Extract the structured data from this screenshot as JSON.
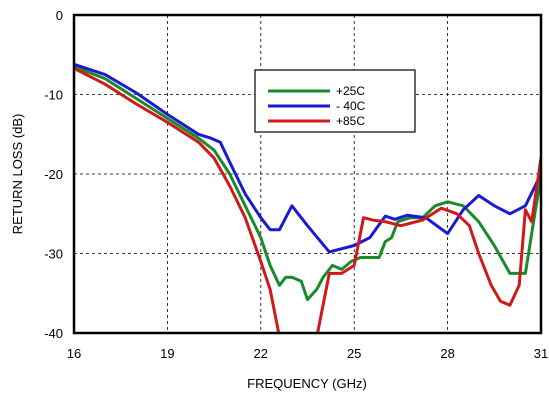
{
  "chart_data": {
    "type": "line",
    "title": "",
    "xlabel": "FREQUENCY (GHz)",
    "ylabel": "RETURN LOSS (dB)",
    "xlim": [
      16,
      31
    ],
    "ylim": [
      -40,
      0
    ],
    "xticks": [
      16,
      19,
      22,
      25,
      28,
      31
    ],
    "yticks": [
      0,
      -10,
      -20,
      -30,
      -40
    ],
    "grid": true,
    "grid_style": "dashed",
    "legend_position": "top-right-center",
    "series": [
      {
        "name": "+25C",
        "color": "#1a8a2a",
        "points": [
          [
            16,
            -6.5
          ],
          [
            17,
            -8.0
          ],
          [
            18,
            -10.5
          ],
          [
            19,
            -13.0
          ],
          [
            20,
            -15.5
          ],
          [
            20.5,
            -17.0
          ],
          [
            21,
            -20.0
          ],
          [
            21.5,
            -24.0
          ],
          [
            22,
            -28.0
          ],
          [
            22.3,
            -31.5
          ],
          [
            22.6,
            -34.0
          ],
          [
            22.8,
            -33.0
          ],
          [
            23.0,
            -33.0
          ],
          [
            23.3,
            -33.5
          ],
          [
            23.5,
            -35.8
          ],
          [
            23.8,
            -34.5
          ],
          [
            24.0,
            -33.0
          ],
          [
            24.3,
            -31.5
          ],
          [
            24.6,
            -32.0
          ],
          [
            24.9,
            -31.0
          ],
          [
            25.2,
            -30.5
          ],
          [
            25.5,
            -30.5
          ],
          [
            25.8,
            -30.5
          ],
          [
            26.0,
            -28.5
          ],
          [
            26.2,
            -28.0
          ],
          [
            26.4,
            -26.0
          ],
          [
            26.8,
            -25.5
          ],
          [
            27.2,
            -25.5
          ],
          [
            27.6,
            -24.0
          ],
          [
            28.0,
            -23.5
          ],
          [
            28.5,
            -24.0
          ],
          [
            29.0,
            -26.0
          ],
          [
            29.5,
            -29.0
          ],
          [
            30.0,
            -32.5
          ],
          [
            30.5,
            -32.5
          ],
          [
            30.8,
            -25.0
          ],
          [
            31,
            -20.5
          ]
        ]
      },
      {
        "name": "- 40C",
        "color": "#1a1ad0",
        "points": [
          [
            16,
            -6.2
          ],
          [
            17,
            -7.5
          ],
          [
            18,
            -9.8
          ],
          [
            19,
            -12.5
          ],
          [
            20,
            -15.0
          ],
          [
            20.4,
            -15.5
          ],
          [
            20.7,
            -16.0
          ],
          [
            21,
            -18.5
          ],
          [
            21.5,
            -22.5
          ],
          [
            22,
            -25.5
          ],
          [
            22.3,
            -27.0
          ],
          [
            22.6,
            -27.0
          ],
          [
            23.0,
            -24.0
          ],
          [
            23.5,
            -26.5
          ],
          [
            24.2,
            -29.8
          ],
          [
            25.0,
            -29.0
          ],
          [
            25.5,
            -28.0
          ],
          [
            26.0,
            -25.3
          ],
          [
            26.3,
            -25.7
          ],
          [
            26.7,
            -25.2
          ],
          [
            27.3,
            -25.5
          ],
          [
            28.0,
            -27.5
          ],
          [
            28.5,
            -24.5
          ],
          [
            29.0,
            -22.7
          ],
          [
            29.5,
            -24.0
          ],
          [
            30.0,
            -25.0
          ],
          [
            30.5,
            -24.0
          ],
          [
            31,
            -20.0
          ]
        ]
      },
      {
        "name": "+85C",
        "color": "#d01a1a",
        "points": [
          [
            16,
            -6.7
          ],
          [
            17,
            -8.7
          ],
          [
            18,
            -11.2
          ],
          [
            19,
            -13.5
          ],
          [
            20,
            -16.0
          ],
          [
            20.5,
            -18.0
          ],
          [
            21,
            -21.5
          ],
          [
            21.5,
            -25.5
          ],
          [
            22,
            -31.0
          ],
          [
            22.3,
            -34.5
          ],
          [
            22.6,
            -40.5
          ],
          [
            23.8,
            -40.5
          ],
          [
            24.2,
            -32.5
          ],
          [
            24.6,
            -32.5
          ],
          [
            25.0,
            -31.5
          ],
          [
            25.3,
            -25.5
          ],
          [
            25.6,
            -25.8
          ],
          [
            26.0,
            -26.0
          ],
          [
            26.5,
            -26.5
          ],
          [
            27.2,
            -25.8
          ],
          [
            27.8,
            -24.3
          ],
          [
            28.3,
            -25.0
          ],
          [
            28.7,
            -26.5
          ],
          [
            29.0,
            -30.0
          ],
          [
            29.4,
            -34.0
          ],
          [
            29.7,
            -36.0
          ],
          [
            30.0,
            -36.5
          ],
          [
            30.3,
            -34.0
          ],
          [
            30.5,
            -24.5
          ],
          [
            30.7,
            -26.0
          ],
          [
            31,
            -18.0
          ]
        ]
      }
    ]
  }
}
